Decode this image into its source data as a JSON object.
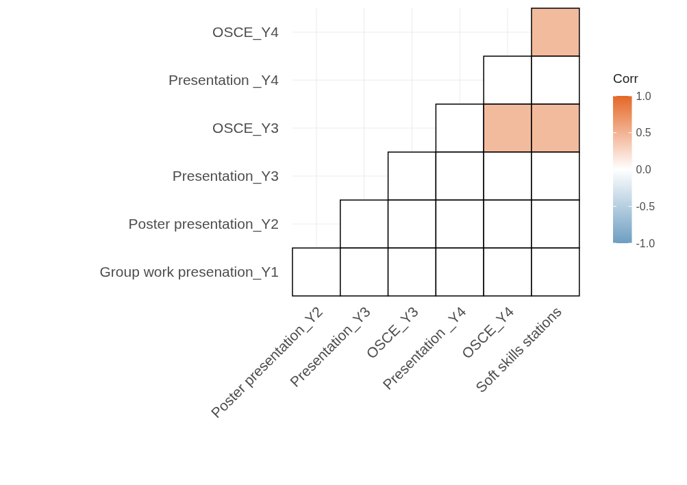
{
  "chart_data": {
    "type": "heatmap",
    "legend_title": "Corr",
    "categories": [
      "Poster presentation_Y2",
      "Presentation_Y3",
      "OSCE_Y3",
      "Presentation _Y4",
      "OSCE_Y4",
      "Soft skills stations"
    ],
    "y_categories": [
      "OSCE_Y4",
      "Presentation _Y4",
      "OSCE_Y3",
      "Presentation_Y3",
      "Poster presentation_Y2",
      "Group work presenation_Y1"
    ],
    "cells": [
      [
        null,
        null,
        null,
        null,
        null,
        0.45
      ],
      [
        null,
        null,
        null,
        null,
        0,
        0
      ],
      [
        null,
        null,
        null,
        0,
        0.45,
        0.45
      ],
      [
        null,
        null,
        0,
        0,
        0,
        0
      ],
      [
        null,
        0,
        0,
        0,
        0,
        0
      ],
      [
        0,
        0,
        0,
        0,
        0,
        0
      ]
    ],
    "clim": [
      -1,
      1
    ],
    "cticks": [
      {
        "value": -1,
        "label": "-1.0"
      },
      {
        "value": -0.5,
        "label": "-0.5"
      },
      {
        "value": 0,
        "label": "0.0"
      },
      {
        "value": 0.5,
        "label": "0.5"
      },
      {
        "value": 1,
        "label": "1.0"
      }
    ],
    "grid": true
  }
}
